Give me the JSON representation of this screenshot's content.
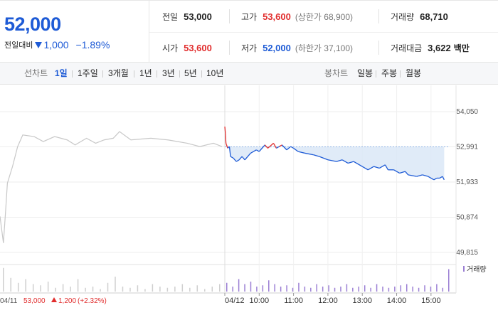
{
  "quote": {
    "price": "52,000",
    "change_label": "전일대비",
    "change_value": "1,000",
    "change_percent": "−1.89%",
    "prev_close": {
      "label": "전일",
      "value": "53,000"
    },
    "high": {
      "label": "고가",
      "value": "53,600",
      "limit_text": "(상한가 68,900)"
    },
    "volume": {
      "label": "거래량",
      "value": "68,710"
    },
    "open": {
      "label": "시가",
      "value": "53,600"
    },
    "low": {
      "label": "저가",
      "value": "52,000",
      "limit_text": "(하한가 37,100)"
    },
    "trade_value": {
      "label": "거래대금",
      "value": "3,622",
      "unit": "백만"
    }
  },
  "line_chart_tabs": {
    "label": "선차트",
    "tabs": [
      "1일",
      "1주일",
      "3개월",
      "1년",
      "3년",
      "5년",
      "10년"
    ],
    "active": "1일"
  },
  "candle_chart_tabs": {
    "label": "봉차트",
    "tabs": [
      "일봉",
      "주봉",
      "월봉"
    ]
  },
  "chart_footer": {
    "prev_date": "04/11",
    "prev_price": "53,000",
    "prev_change": "1,200",
    "prev_change_pct": "(+2.32%)"
  },
  "volume_legend": "거래량",
  "colors": {
    "up": "#e12d2d",
    "down": "#1e5bd6",
    "prev_day_line": "#c8c8c8",
    "volume_bar": "#9b7fd4",
    "fill_area": "#dbe8f7"
  },
  "chart_data": {
    "type": "line",
    "y_ticks": [
      "54,050",
      "52,991",
      "51,933",
      "50,874",
      "49,815"
    ],
    "ylim": [
      49815,
      54050
    ],
    "x_ticks": [
      "04/12",
      "10:00",
      "11:00",
      "12:00",
      "13:00",
      "14:00",
      "15:00"
    ],
    "reference_price": 52991,
    "previous_day": {
      "x": [
        "09:00",
        "09:06",
        "09:10",
        "09:13",
        "09:22",
        "09:31",
        "09:40",
        "10:00",
        "10:16",
        "10:36",
        "10:58",
        "11:12",
        "11:32",
        "11:48",
        "12:03",
        "12:19",
        "12:30",
        "12:50",
        "13:25",
        "13:55",
        "14:29",
        "14:51",
        "15:15",
        "15:30"
      ],
      "values": [
        50900,
        50100,
        51100,
        51900,
        52400,
        53000,
        53350,
        53300,
        53150,
        53300,
        53200,
        53050,
        53250,
        53100,
        53200,
        53250,
        53450,
        53200,
        53250,
        53200,
        53100,
        53000,
        53100,
        53000
      ]
    },
    "today": {
      "x": [
        "09:00",
        "09:01",
        "09:02",
        "09:03",
        "09:05",
        "09:08",
        "09:10",
        "09:15",
        "09:20",
        "09:25",
        "09:30",
        "09:35",
        "09:45",
        "09:55",
        "10:00",
        "10:10",
        "10:15",
        "10:25",
        "10:30",
        "10:35",
        "10:40",
        "10:48",
        "10:55",
        "11:00",
        "11:08",
        "11:20",
        "11:35",
        "11:45",
        "12:00",
        "12:15",
        "12:25",
        "12:35",
        "12:45",
        "13:00",
        "13:10",
        "13:20",
        "13:30",
        "13:40",
        "13:45",
        "13:55",
        "14:05",
        "14:15",
        "14:20",
        "14:35",
        "14:45",
        "14:55",
        "15:05",
        "15:10",
        "15:15",
        "15:20",
        "15:23"
      ],
      "values": [
        53600,
        53400,
        53100,
        53050,
        52950,
        53000,
        52700,
        52650,
        52550,
        52600,
        52700,
        52600,
        52800,
        52900,
        52850,
        53050,
        52950,
        53100,
        52950,
        53000,
        53050,
        52900,
        53000,
        52950,
        52850,
        52800,
        52750,
        52700,
        52600,
        52550,
        52600,
        52500,
        52550,
        52400,
        52300,
        52400,
        52350,
        52450,
        52300,
        52300,
        52200,
        52250,
        52150,
        52100,
        52150,
        52100,
        52000,
        52050,
        52050,
        52100,
        52000
      ]
    },
    "volume": {
      "previous_day_levels": [
        0.95,
        0.55,
        0.35,
        0.5,
        0.3,
        0.25,
        0.4,
        0.15,
        0.3,
        0.2,
        0.5,
        0.15,
        0.2,
        0.1,
        0.35,
        0.6,
        0.2,
        0.15,
        0.25,
        0.1,
        0.3,
        0.2,
        0.15,
        0.2,
        0.3,
        0.15,
        0.25,
        0.1,
        0.2,
        0.3
      ],
      "today_levels": [
        0.35,
        0.2,
        0.5,
        0.3,
        0.4,
        0.2,
        0.25,
        0.45,
        0.3,
        0.2,
        0.25,
        0.15,
        0.35,
        0.2,
        0.15,
        0.3,
        0.2,
        0.25,
        0.15,
        0.2,
        0.3,
        0.15,
        0.2,
        0.25,
        0.15,
        0.3,
        0.2,
        0.15,
        0.2,
        0.25,
        0.3,
        0.2,
        0.15,
        0.25,
        0.2,
        0.3,
        0.15,
        0.9
      ]
    }
  }
}
